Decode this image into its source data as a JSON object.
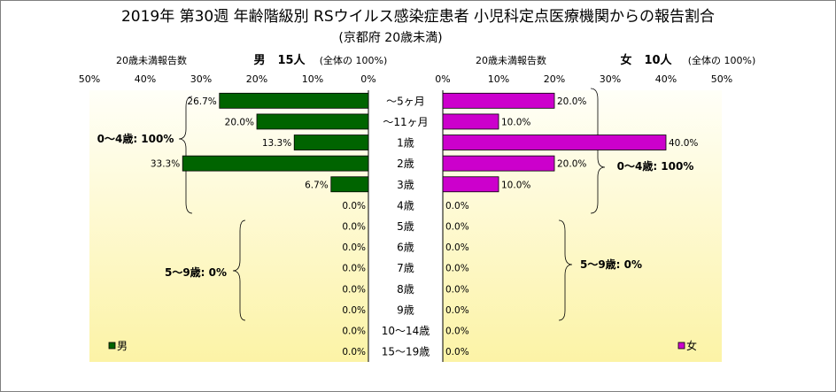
{
  "title": "2019年 第30週 年齢階級別 RSウイルス感染症患者 小児科定点医療機関からの報告割合",
  "subtitle": "(京都府 20歳未満)",
  "male_header": {
    "count_label": "20歳未満報告数",
    "sex": "男",
    "count": "15人",
    "total_note": "(全体の 100%)"
  },
  "female_header": {
    "count_label": "20歳未満報告数",
    "sex": "女",
    "count": "10人",
    "total_note": "(全体の 100%)"
  },
  "male_group_labels": [
    "0～4歳: 100%",
    "5～9歳: 0%"
  ],
  "female_group_labels": [
    "0～4歳: 100%",
    "5～9歳: 0%"
  ],
  "colors": {
    "male": "#006400",
    "female": "#cc00cc",
    "plot_bg_top": "#fffff8",
    "plot_bg_bottom": "#fcf3a6"
  },
  "chart_data": [
    {
      "type": "bar",
      "orientation": "horizontal",
      "direction": "right-to-left",
      "legend": "男",
      "legend_position": "bottom-left",
      "xlim": [
        0,
        50
      ],
      "x_ticks": [
        "50%",
        "40%",
        "30%",
        "20%",
        "10%",
        "0%"
      ],
      "categories": [
        "~5ヶ月",
        "~11ヶ月",
        "1歳",
        "2歳",
        "3歳",
        "4歳",
        "5歳",
        "6歳",
        "7歳",
        "8歳",
        "9歳",
        "10~14歳",
        "15~19歳"
      ],
      "values": [
        26.7,
        20.0,
        13.3,
        33.3,
        6.7,
        0.0,
        0.0,
        0.0,
        0.0,
        0.0,
        0.0,
        0.0,
        0.0
      ],
      "labels": [
        "26.7%",
        "20.0%",
        "13.3%",
        "33.3%",
        "6.7%",
        "0.0%",
        "0.0%",
        "0.0%",
        "0.0%",
        "0.0%",
        "0.0%",
        "0.0%",
        "0.0%"
      ]
    },
    {
      "type": "bar",
      "orientation": "horizontal",
      "direction": "left-to-right",
      "legend": "女",
      "legend_position": "bottom-right",
      "xlim": [
        0,
        50
      ],
      "x_ticks": [
        "0%",
        "10%",
        "20%",
        "30%",
        "40%",
        "50%"
      ],
      "categories": [
        "~5ヶ月",
        "~11ヶ月",
        "1歳",
        "2歳",
        "3歳",
        "4歳",
        "5歳",
        "6歳",
        "7歳",
        "8歳",
        "9歳",
        "10~14歳",
        "15~19歳"
      ],
      "values": [
        20.0,
        10.0,
        40.0,
        20.0,
        10.0,
        0.0,
        0.0,
        0.0,
        0.0,
        0.0,
        0.0,
        0.0,
        0.0
      ],
      "labels": [
        "20.0%",
        "10.0%",
        "40.0%",
        "20.0%",
        "10.0%",
        "0.0%",
        "0.0%",
        "0.0%",
        "0.0%",
        "0.0%",
        "0.0%",
        "0.0%",
        "0.0%"
      ]
    }
  ],
  "category_display": [
    "～5ヶ月",
    "～11ヶ月",
    "1歳",
    "2歳",
    "3歳",
    "4歳",
    "5歳",
    "6歳",
    "7歳",
    "8歳",
    "9歳",
    "10～14歳",
    "15～19歳"
  ]
}
